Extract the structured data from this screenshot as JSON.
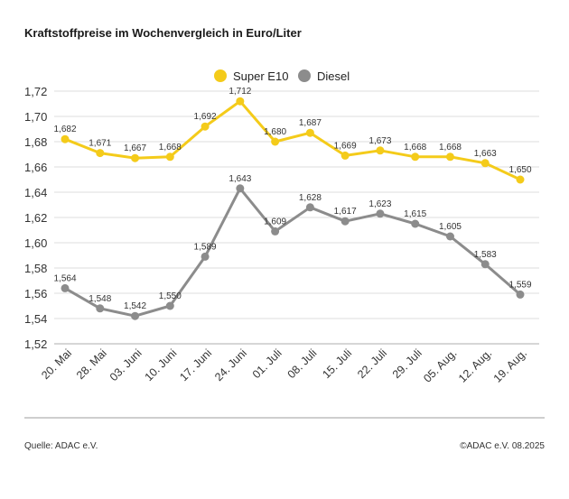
{
  "title": "Kraftstoffpreise im Wochenvergleich in Euro/Liter",
  "source": "Quelle: ADAC e.V.",
  "copyright": "©ADAC e.V. 08.2025",
  "colors": {
    "super_e10": "#f4cb1a",
    "diesel": "#8c8c8c",
    "grid": "#dddddd",
    "axis": "#bdbdbd"
  },
  "chart_data": {
    "type": "line",
    "title": "Kraftstoffpreise im Wochenvergleich in Euro/Liter",
    "xlabel": "",
    "ylabel": "",
    "categories": [
      "20. Mai",
      "28. Mai",
      "03. Juni",
      "10. Juni",
      "17. Juni",
      "24. Juni",
      "01. Juli",
      "08. Juli",
      "15. Juli",
      "22. Juli",
      "29. Juli",
      "05. Aug.",
      "12. Aug.",
      "19. Aug."
    ],
    "series": [
      {
        "name": "Super E10",
        "color": "#f4cb1a",
        "values": [
          1.682,
          1.671,
          1.667,
          1.668,
          1.692,
          1.712,
          1.68,
          1.687,
          1.669,
          1.673,
          1.668,
          1.668,
          1.663,
          1.65
        ],
        "labels": [
          "1,682",
          "1,671",
          "1,667",
          "1,668",
          "1,692",
          "1,712",
          "1,680",
          "1,687",
          "1,669",
          "1,673",
          "1,668",
          "1,668",
          "1,663",
          "1,650"
        ]
      },
      {
        "name": "Diesel",
        "color": "#8c8c8c",
        "values": [
          1.564,
          1.548,
          1.542,
          1.55,
          1.589,
          1.643,
          1.609,
          1.628,
          1.617,
          1.623,
          1.615,
          1.605,
          1.583,
          1.559
        ],
        "labels": [
          "1,564",
          "1,548",
          "1,542",
          "1,550",
          "1,589",
          "1,643",
          "1,609",
          "1,628",
          "1,617",
          "1,623",
          "1,615",
          "1,605",
          "1,583",
          "1,559"
        ]
      }
    ],
    "ylim": [
      1.52,
      1.72
    ],
    "yticks": [
      1.72,
      1.7,
      1.68,
      1.66,
      1.64,
      1.62,
      1.6,
      1.58,
      1.56,
      1.54,
      1.52
    ],
    "ytick_labels": [
      "1,72",
      "1,70",
      "1,68",
      "1,66",
      "1,64",
      "1,62",
      "1,60",
      "1,58",
      "1,56",
      "1,54",
      "1,52"
    ],
    "grid": true,
    "legend": "top-center"
  }
}
